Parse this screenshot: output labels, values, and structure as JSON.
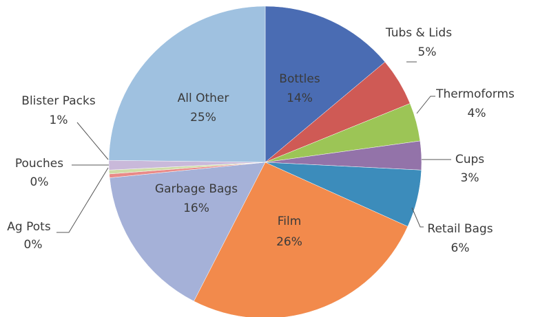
{
  "chart_data": {
    "type": "pie",
    "categories": [
      "Bottles",
      "Tubs & Lids",
      "Thermoforms",
      "Cups",
      "Retail Bags",
      "Film",
      "Garbage Bags",
      "Ag Pots",
      "Pouches",
      "Blister Packs",
      "All Other"
    ],
    "values": [
      14,
      5,
      4,
      3,
      6,
      26,
      16,
      0.4,
      0.4,
      1,
      25
    ],
    "value_labels": [
      "14%",
      "5%",
      "4%",
      "3%",
      "6%",
      "26%",
      "16%",
      "0%",
      "0%",
      "1%",
      "25%"
    ],
    "colors": [
      "#4a6cb3",
      "#cf5a55",
      "#9cc556",
      "#9373a9",
      "#3c8cbb",
      "#f28a4c",
      "#a5b1d8",
      "#e98a88",
      "#cfdca6",
      "#c9b9da",
      "#9fc1e0"
    ]
  }
}
